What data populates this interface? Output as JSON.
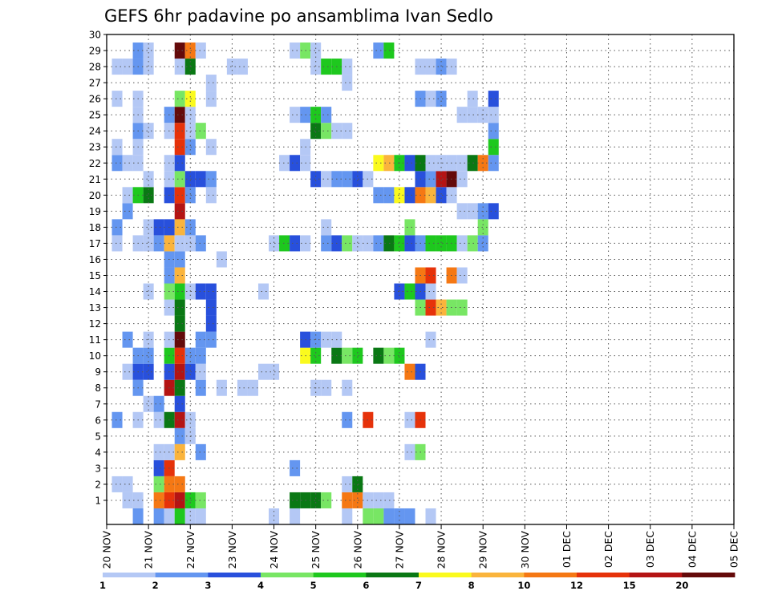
{
  "chart_data": {
    "type": "heatmap",
    "title": "GEFS 6hr padavine po ansamblima Ivan Sedlo",
    "xlabel": "",
    "ylabel": "",
    "x_ticks": [
      "20 NOV",
      "21 NOV",
      "22 NOV",
      "23 NOV",
      "24 NOV",
      "25 NOV",
      "26 NOV",
      "27 NOV",
      "28 NOV",
      "29 NOV",
      "30 NOV",
      "01 DEC",
      "02 DEC",
      "03 DEC",
      "04 DEC",
      "05 DEC"
    ],
    "x_steps_per_day": 4,
    "y_ticks": [
      1,
      2,
      3,
      4,
      5,
      6,
      7,
      8,
      9,
      10,
      11,
      12,
      13,
      14,
      15,
      16,
      17,
      18,
      19,
      20,
      21,
      22,
      23,
      24,
      25,
      26,
      27,
      28,
      29,
      30
    ],
    "y_members": 31,
    "grid": "dotted",
    "colorbar": {
      "placement": "bottom",
      "labels": [
        "1",
        "2",
        "3",
        "4",
        "5",
        "6",
        "7",
        "8",
        "10",
        "12",
        "15",
        "20"
      ],
      "colors": [
        "#b4c8f5",
        "#6496f0",
        "#2850dc",
        "#78e664",
        "#1ec81e",
        "#0a7814",
        "#fafa1e",
        "#fab43c",
        "#f57814",
        "#e6320a",
        "#b41414",
        "#640a0a"
      ]
    },
    "cells": [
      [
        2,
        0,
        2
      ],
      [
        4,
        0,
        2
      ],
      [
        5,
        0,
        1
      ],
      [
        6,
        0,
        5
      ],
      [
        7,
        0,
        1
      ],
      [
        8,
        0,
        1
      ],
      [
        15,
        0,
        1
      ],
      [
        17,
        0,
        1
      ],
      [
        22,
        0,
        1
      ],
      [
        24,
        0,
        4
      ],
      [
        25,
        0,
        4
      ],
      [
        26,
        0,
        2
      ],
      [
        27,
        0,
        2
      ],
      [
        28,
        0,
        2
      ],
      [
        30,
        0,
        1
      ],
      [
        1,
        1,
        1
      ],
      [
        2,
        1,
        1
      ],
      [
        4,
        1,
        9
      ],
      [
        5,
        1,
        10
      ],
      [
        6,
        1,
        11
      ],
      [
        7,
        1,
        5
      ],
      [
        8,
        1,
        4
      ],
      [
        17,
        1,
        6
      ],
      [
        18,
        1,
        6
      ],
      [
        19,
        1,
        6
      ],
      [
        20,
        1,
        4
      ],
      [
        22,
        1,
        9
      ],
      [
        23,
        1,
        9
      ],
      [
        24,
        1,
        1
      ],
      [
        25,
        1,
        1
      ],
      [
        26,
        1,
        1
      ],
      [
        0,
        2,
        1
      ],
      [
        1,
        2,
        1
      ],
      [
        4,
        2,
        4
      ],
      [
        5,
        2,
        9
      ],
      [
        6,
        2,
        9
      ],
      [
        22,
        2,
        1
      ],
      [
        23,
        2,
        6
      ],
      [
        4,
        3,
        3
      ],
      [
        5,
        3,
        10
      ],
      [
        17,
        3,
        2
      ],
      [
        4,
        4,
        1
      ],
      [
        5,
        4,
        1
      ],
      [
        6,
        4,
        8
      ],
      [
        8,
        4,
        2
      ],
      [
        28,
        4,
        1
      ],
      [
        29,
        4,
        4
      ],
      [
        6,
        5,
        2
      ],
      [
        7,
        5,
        1
      ],
      [
        0,
        6,
        2
      ],
      [
        2,
        6,
        1
      ],
      [
        4,
        6,
        1
      ],
      [
        5,
        6,
        6
      ],
      [
        6,
        6,
        11
      ],
      [
        7,
        6,
        1
      ],
      [
        22,
        6,
        2
      ],
      [
        24,
        6,
        10
      ],
      [
        28,
        6,
        1
      ],
      [
        29,
        6,
        10
      ],
      [
        3,
        7,
        1
      ],
      [
        4,
        7,
        2
      ],
      [
        6,
        7,
        3
      ],
      [
        2,
        8,
        2
      ],
      [
        5,
        8,
        11
      ],
      [
        6,
        8,
        6
      ],
      [
        8,
        8,
        2
      ],
      [
        10,
        8,
        1
      ],
      [
        12,
        8,
        1
      ],
      [
        13,
        8,
        1
      ],
      [
        19,
        8,
        1
      ],
      [
        20,
        8,
        1
      ],
      [
        22,
        8,
        1
      ],
      [
        1,
        9,
        1
      ],
      [
        2,
        9,
        3
      ],
      [
        3,
        9,
        3
      ],
      [
        5,
        9,
        3
      ],
      [
        6,
        9,
        11
      ],
      [
        7,
        9,
        3
      ],
      [
        8,
        9,
        1
      ],
      [
        14,
        9,
        1
      ],
      [
        15,
        9,
        1
      ],
      [
        28,
        9,
        9
      ],
      [
        29,
        9,
        3
      ],
      [
        2,
        10,
        2
      ],
      [
        3,
        10,
        2
      ],
      [
        5,
        10,
        5
      ],
      [
        6,
        10,
        10
      ],
      [
        7,
        10,
        2
      ],
      [
        8,
        10,
        2
      ],
      [
        18,
        10,
        7
      ],
      [
        19,
        10,
        5
      ],
      [
        21,
        10,
        6
      ],
      [
        22,
        10,
        4
      ],
      [
        23,
        10,
        5
      ],
      [
        25,
        10,
        6
      ],
      [
        26,
        10,
        4
      ],
      [
        27,
        10,
        5
      ],
      [
        1,
        11,
        2
      ],
      [
        3,
        11,
        1
      ],
      [
        5,
        11,
        1
      ],
      [
        6,
        11,
        12
      ],
      [
        8,
        11,
        2
      ],
      [
        9,
        11,
        2
      ],
      [
        18,
        11,
        3
      ],
      [
        19,
        11,
        2
      ],
      [
        20,
        11,
        1
      ],
      [
        21,
        11,
        1
      ],
      [
        30,
        11,
        1
      ],
      [
        6,
        12,
        6
      ],
      [
        9,
        12,
        3
      ],
      [
        5,
        13,
        1
      ],
      [
        6,
        13,
        6
      ],
      [
        9,
        13,
        3
      ],
      [
        29,
        13,
        4
      ],
      [
        30,
        13,
        10
      ],
      [
        31,
        13,
        8
      ],
      [
        32,
        13,
        4
      ],
      [
        33,
        13,
        4
      ],
      [
        3,
        14,
        1
      ],
      [
        5,
        14,
        4
      ],
      [
        6,
        14,
        5
      ],
      [
        7,
        14,
        1
      ],
      [
        8,
        14,
        3
      ],
      [
        9,
        14,
        3
      ],
      [
        14,
        14,
        1
      ],
      [
        27,
        14,
        3
      ],
      [
        28,
        14,
        5
      ],
      [
        29,
        14,
        3
      ],
      [
        30,
        14,
        1
      ],
      [
        5,
        15,
        2
      ],
      [
        6,
        15,
        8
      ],
      [
        29,
        15,
        9
      ],
      [
        30,
        15,
        10
      ],
      [
        32,
        15,
        9
      ],
      [
        33,
        15,
        1
      ],
      [
        5,
        16,
        2
      ],
      [
        6,
        16,
        2
      ],
      [
        10,
        16,
        1
      ],
      [
        0,
        17,
        1
      ],
      [
        2,
        17,
        1
      ],
      [
        3,
        17,
        1
      ],
      [
        4,
        17,
        2
      ],
      [
        5,
        17,
        8
      ],
      [
        6,
        17,
        1
      ],
      [
        7,
        17,
        1
      ],
      [
        8,
        17,
        2
      ],
      [
        15,
        17,
        1
      ],
      [
        16,
        17,
        5
      ],
      [
        17,
        17,
        3
      ],
      [
        18,
        17,
        1
      ],
      [
        20,
        17,
        2
      ],
      [
        21,
        17,
        3
      ],
      [
        22,
        17,
        4
      ],
      [
        23,
        17,
        1
      ],
      [
        24,
        17,
        1
      ],
      [
        25,
        17,
        2
      ],
      [
        26,
        17,
        6
      ],
      [
        27,
        17,
        5
      ],
      [
        28,
        17,
        3
      ],
      [
        29,
        17,
        2
      ],
      [
        30,
        17,
        5
      ],
      [
        31,
        17,
        5
      ],
      [
        32,
        17,
        5
      ],
      [
        33,
        17,
        1
      ],
      [
        34,
        17,
        4
      ],
      [
        35,
        17,
        2
      ],
      [
        0,
        18,
        2
      ],
      [
        3,
        18,
        1
      ],
      [
        4,
        18,
        3
      ],
      [
        5,
        18,
        3
      ],
      [
        6,
        18,
        8
      ],
      [
        7,
        18,
        2
      ],
      [
        20,
        18,
        1
      ],
      [
        28,
        18,
        4
      ],
      [
        35,
        18,
        4
      ],
      [
        1,
        19,
        2
      ],
      [
        6,
        19,
        11
      ],
      [
        33,
        19,
        1
      ],
      [
        34,
        19,
        1
      ],
      [
        35,
        19,
        2
      ],
      [
        36,
        19,
        3
      ],
      [
        1,
        20,
        1
      ],
      [
        2,
        20,
        5
      ],
      [
        3,
        20,
        6
      ],
      [
        5,
        20,
        3
      ],
      [
        6,
        20,
        10
      ],
      [
        7,
        20,
        2
      ],
      [
        9,
        20,
        1
      ],
      [
        25,
        20,
        2
      ],
      [
        26,
        20,
        2
      ],
      [
        27,
        20,
        7
      ],
      [
        28,
        20,
        3
      ],
      [
        29,
        20,
        9
      ],
      [
        30,
        20,
        8
      ],
      [
        31,
        20,
        3
      ],
      [
        32,
        20,
        1
      ],
      [
        3,
        21,
        1
      ],
      [
        5,
        21,
        1
      ],
      [
        6,
        21,
        4
      ],
      [
        7,
        21,
        3
      ],
      [
        8,
        21,
        3
      ],
      [
        9,
        21,
        2
      ],
      [
        19,
        21,
        3
      ],
      [
        20,
        21,
        1
      ],
      [
        21,
        21,
        2
      ],
      [
        22,
        21,
        2
      ],
      [
        23,
        21,
        3
      ],
      [
        24,
        21,
        1
      ],
      [
        29,
        21,
        3
      ],
      [
        30,
        21,
        2
      ],
      [
        31,
        21,
        11
      ],
      [
        32,
        21,
        12
      ],
      [
        33,
        21,
        1
      ],
      [
        0,
        22,
        2
      ],
      [
        1,
        22,
        1
      ],
      [
        2,
        22,
        1
      ],
      [
        5,
        22,
        1
      ],
      [
        6,
        22,
        3
      ],
      [
        16,
        22,
        1
      ],
      [
        17,
        22,
        3
      ],
      [
        18,
        22,
        1
      ],
      [
        25,
        22,
        7
      ],
      [
        26,
        22,
        8
      ],
      [
        27,
        22,
        5
      ],
      [
        28,
        22,
        3
      ],
      [
        29,
        22,
        6
      ],
      [
        30,
        22,
        1
      ],
      [
        31,
        22,
        1
      ],
      [
        32,
        22,
        1
      ],
      [
        33,
        22,
        1
      ],
      [
        34,
        22,
        6
      ],
      [
        35,
        22,
        9
      ],
      [
        36,
        22,
        2
      ],
      [
        0,
        23,
        1
      ],
      [
        2,
        23,
        1
      ],
      [
        6,
        23,
        10
      ],
      [
        7,
        23,
        2
      ],
      [
        9,
        23,
        1
      ],
      [
        18,
        23,
        1
      ],
      [
        36,
        23,
        5
      ],
      [
        2,
        24,
        2
      ],
      [
        3,
        24,
        1
      ],
      [
        5,
        24,
        1
      ],
      [
        6,
        24,
        10
      ],
      [
        7,
        24,
        1
      ],
      [
        8,
        24,
        4
      ],
      [
        19,
        24,
        6
      ],
      [
        20,
        24,
        4
      ],
      [
        21,
        24,
        1
      ],
      [
        22,
        24,
        1
      ],
      [
        36,
        24,
        2
      ],
      [
        2,
        25,
        1
      ],
      [
        5,
        25,
        2
      ],
      [
        6,
        25,
        12
      ],
      [
        7,
        25,
        1
      ],
      [
        17,
        25,
        1
      ],
      [
        18,
        25,
        2
      ],
      [
        19,
        25,
        5
      ],
      [
        20,
        25,
        2
      ],
      [
        33,
        25,
        1
      ],
      [
        34,
        25,
        1
      ],
      [
        35,
        25,
        1
      ],
      [
        36,
        25,
        1
      ],
      [
        0,
        26,
        1
      ],
      [
        2,
        26,
        1
      ],
      [
        6,
        26,
        4
      ],
      [
        7,
        26,
        7
      ],
      [
        9,
        26,
        1
      ],
      [
        29,
        26,
        2
      ],
      [
        30,
        26,
        1
      ],
      [
        31,
        26,
        2
      ],
      [
        34,
        26,
        1
      ],
      [
        36,
        26,
        3
      ],
      [
        9,
        27,
        1
      ],
      [
        22,
        27,
        1
      ],
      [
        0,
        28,
        1
      ],
      [
        1,
        28,
        1
      ],
      [
        2,
        28,
        2
      ],
      [
        3,
        28,
        1
      ],
      [
        6,
        28,
        1
      ],
      [
        7,
        28,
        6
      ],
      [
        11,
        28,
        1
      ],
      [
        12,
        28,
        1
      ],
      [
        19,
        28,
        1
      ],
      [
        20,
        28,
        5
      ],
      [
        21,
        28,
        5
      ],
      [
        22,
        28,
        1
      ],
      [
        29,
        28,
        1
      ],
      [
        30,
        28,
        1
      ],
      [
        31,
        28,
        2
      ],
      [
        32,
        28,
        1
      ],
      [
        2,
        29,
        2
      ],
      [
        3,
        29,
        1
      ],
      [
        6,
        29,
        12
      ],
      [
        7,
        29,
        9
      ],
      [
        8,
        29,
        1
      ],
      [
        17,
        29,
        1
      ],
      [
        18,
        29,
        4
      ],
      [
        19,
        29,
        1
      ],
      [
        25,
        29,
        2
      ],
      [
        26,
        29,
        5
      ]
    ]
  }
}
